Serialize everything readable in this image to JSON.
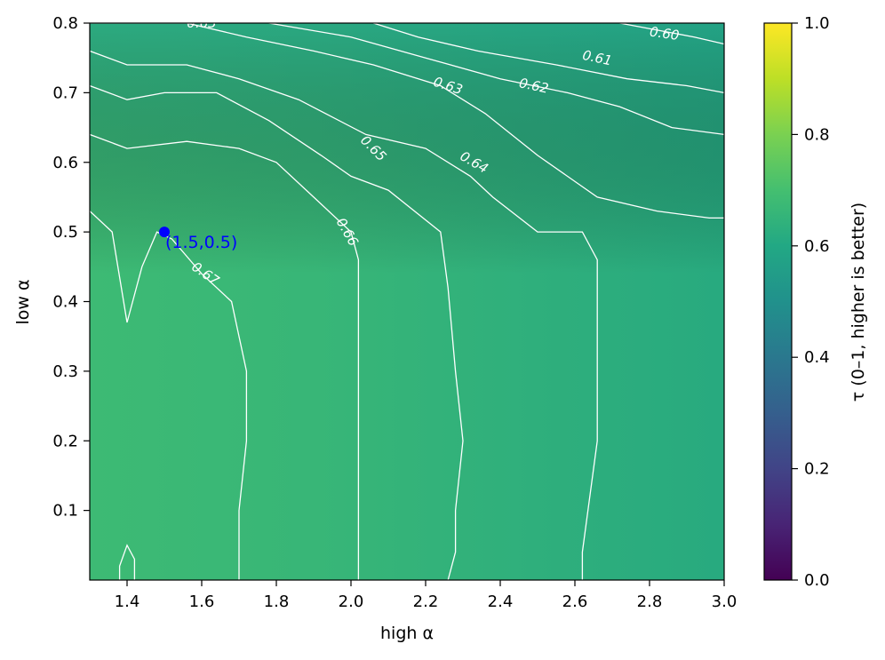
{
  "chart_data": {
    "type": "contour",
    "xlabel": "high α",
    "ylabel": "low α",
    "colorbar_label": "τ (0–1, higher is better)",
    "colormap": "viridis",
    "xlim": [
      1.3,
      3.0
    ],
    "ylim": [
      0.0,
      0.8
    ],
    "clim": [
      0.0,
      1.0
    ],
    "x_ticks": [
      1.4,
      1.6,
      1.8,
      2.0,
      2.2,
      2.4,
      2.6,
      2.8,
      3.0
    ],
    "x_tick_labels": [
      "1.4",
      "1.6",
      "1.8",
      "2.0",
      "2.2",
      "2.4",
      "2.6",
      "2.8",
      "3.0"
    ],
    "y_ticks": [
      0.1,
      0.2,
      0.3,
      0.4,
      0.5,
      0.6,
      0.7,
      0.8
    ],
    "y_tick_labels": [
      "0.1",
      "0.2",
      "0.3",
      "0.4",
      "0.5",
      "0.6",
      "0.7",
      "0.8"
    ],
    "colorbar_ticks": [
      0.0,
      0.2,
      0.4,
      0.6,
      0.8,
      1.0
    ],
    "colorbar_tick_labels": [
      "0.0",
      "0.2",
      "0.4",
      "0.6",
      "0.8",
      "1.0"
    ],
    "field_corners": {
      "low_high_low": 0.67,
      "high_high_low": 0.61,
      "low_high_high": 0.635,
      "high_high_high": 0.595
    },
    "contours": [
      {
        "level": 0.6,
        "label": "0.60",
        "points": [
          [
            2.72,
            0.8
          ],
          [
            2.92,
            0.78
          ],
          [
            3.0,
            0.77
          ]
        ],
        "label_at": [
          2.84,
          0.785
        ],
        "label_angle": 8
      },
      {
        "level": 0.61,
        "label": "0.61",
        "points": [
          [
            2.06,
            0.8
          ],
          [
            2.18,
            0.78
          ],
          [
            2.34,
            0.76
          ],
          [
            2.55,
            0.74
          ],
          [
            2.74,
            0.72
          ],
          [
            2.9,
            0.71
          ],
          [
            3.0,
            0.7
          ]
        ],
        "label_at": [
          2.66,
          0.75
        ],
        "label_angle": 12
      },
      {
        "level": 0.62,
        "label": "0.62",
        "points": [
          [
            1.78,
            0.8
          ],
          [
            2.0,
            0.78
          ],
          [
            2.2,
            0.75
          ],
          [
            2.4,
            0.72
          ],
          [
            2.58,
            0.7
          ],
          [
            2.72,
            0.68
          ],
          [
            2.86,
            0.65
          ],
          [
            3.0,
            0.64
          ]
        ],
        "label_at": [
          2.49,
          0.71
        ],
        "label_angle": 12
      },
      {
        "level": 0.63,
        "label": "0.63",
        "points": [
          [
            1.3,
            0.8
          ],
          [
            1.56,
            0.8
          ],
          [
            1.72,
            0.78
          ],
          [
            1.9,
            0.76
          ],
          [
            2.06,
            0.74
          ],
          [
            2.24,
            0.71
          ],
          [
            2.36,
            0.67
          ],
          [
            2.5,
            0.61
          ],
          [
            2.66,
            0.55
          ],
          [
            2.82,
            0.53
          ],
          [
            2.96,
            0.52
          ],
          [
            3.0,
            0.52
          ]
        ],
        "label_at": [
          1.6,
          0.8
        ],
        "label_angle": 0
      },
      {
        "level": 0.63,
        "label": "0.63",
        "points": [],
        "label_at": [
          2.26,
          0.71
        ],
        "label_angle": 18
      },
      {
        "level": 0.64,
        "label": "0.64",
        "points": [
          [
            1.3,
            0.76
          ],
          [
            1.4,
            0.74
          ],
          [
            1.56,
            0.74
          ],
          [
            1.7,
            0.72
          ],
          [
            1.86,
            0.69
          ],
          [
            2.04,
            0.64
          ],
          [
            2.2,
            0.62
          ],
          [
            2.32,
            0.58
          ],
          [
            2.38,
            0.55
          ],
          [
            2.5,
            0.5
          ],
          [
            2.62,
            0.5
          ],
          [
            2.66,
            0.46
          ],
          [
            2.66,
            0.4
          ],
          [
            2.66,
            0.2
          ],
          [
            2.62,
            0.04
          ],
          [
            2.62,
            0.0
          ]
        ],
        "label_at": [
          2.33,
          0.6
        ],
        "label_angle": 30
      },
      {
        "level": 0.65,
        "label": "0.65",
        "points": [
          [
            1.3,
            0.71
          ],
          [
            1.4,
            0.69
          ],
          [
            1.5,
            0.7
          ],
          [
            1.64,
            0.7
          ],
          [
            1.78,
            0.66
          ],
          [
            1.92,
            0.61
          ],
          [
            2.0,
            0.58
          ],
          [
            2.1,
            0.56
          ],
          [
            2.24,
            0.5
          ],
          [
            2.26,
            0.42
          ],
          [
            2.28,
            0.3
          ],
          [
            2.3,
            0.2
          ],
          [
            2.28,
            0.1
          ],
          [
            2.28,
            0.04
          ],
          [
            2.26,
            0.0
          ]
        ],
        "label_at": [
          2.06,
          0.62
        ],
        "label_angle": 45
      },
      {
        "level": 0.66,
        "label": "0.66",
        "points": [
          [
            1.3,
            0.64
          ],
          [
            1.4,
            0.62
          ],
          [
            1.56,
            0.63
          ],
          [
            1.7,
            0.62
          ],
          [
            1.8,
            0.6
          ],
          [
            1.9,
            0.55
          ],
          [
            2.0,
            0.5
          ],
          [
            2.02,
            0.46
          ],
          [
            2.02,
            0.3
          ],
          [
            2.02,
            0.2
          ],
          [
            2.02,
            0.04
          ],
          [
            2.02,
            0.0
          ]
        ],
        "label_at": [
          1.99,
          0.5
        ],
        "label_angle": 60
      },
      {
        "level": 0.67,
        "label": "0.67",
        "points": [
          [
            1.3,
            0.53
          ],
          [
            1.36,
            0.5
          ],
          [
            1.4,
            0.37
          ],
          [
            1.44,
            0.45
          ],
          [
            1.48,
            0.5
          ],
          [
            1.52,
            0.49
          ],
          [
            1.6,
            0.44
          ],
          [
            1.68,
            0.4
          ],
          [
            1.7,
            0.35
          ],
          [
            1.72,
            0.3
          ],
          [
            1.72,
            0.2
          ],
          [
            1.7,
            0.1
          ],
          [
            1.7,
            0.04
          ],
          [
            1.7,
            0.0
          ]
        ],
        "label_at": [
          1.61,
          0.44
        ],
        "label_angle": 35
      },
      {
        "level": 0.67,
        "label": "",
        "points": [
          [
            1.38,
            0.0
          ],
          [
            1.38,
            0.02
          ],
          [
            1.4,
            0.05
          ],
          [
            1.42,
            0.03
          ],
          [
            1.42,
            0.0
          ]
        ],
        "label_at": null,
        "label_angle": 0
      }
    ],
    "annotations": [
      {
        "x": 1.5,
        "y": 0.5,
        "label": "(1.5,0.5)",
        "color": "#0000ff"
      }
    ]
  },
  "colors": {
    "marker": "#0000ff",
    "contour_line": "#ffffff"
  }
}
